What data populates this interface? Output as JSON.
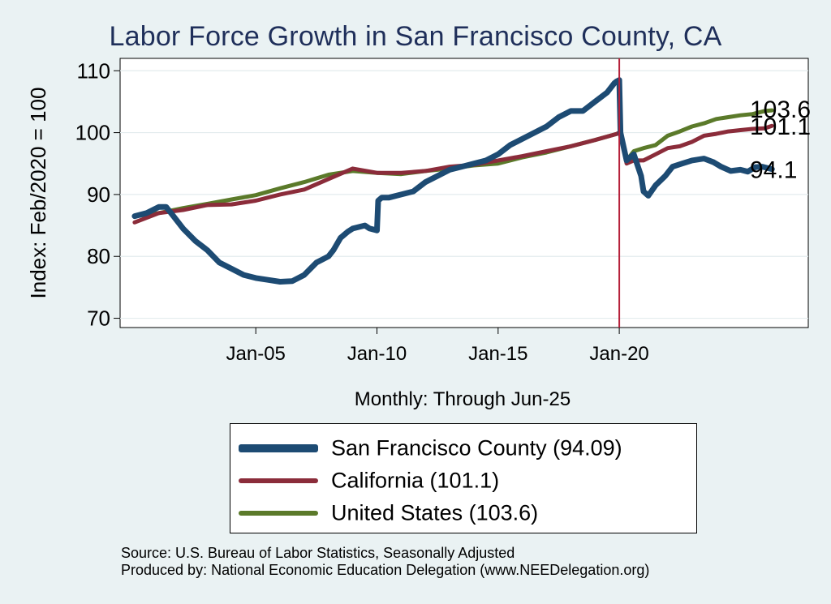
{
  "chart_data": {
    "type": "line",
    "title": "Labor Force Growth in San Francisco  County, CA",
    "xlabel": "Monthly: Through Jun-25",
    "ylabel": "Index: Feb/2020 = 100",
    "ylim": [
      68.5,
      112
    ],
    "xlim": [
      1999.4,
      2027.8
    ],
    "y_ticks": [
      70,
      80,
      90,
      100,
      110
    ],
    "x_ticks": [
      {
        "label": "Jan-05",
        "value": 2005
      },
      {
        "label": "Jan-10",
        "value": 2010
      },
      {
        "label": "Jan-15",
        "value": 2015
      },
      {
        "label": "Jan-20",
        "value": 2020
      }
    ],
    "grid": true,
    "vline": {
      "value": 2020.0,
      "color": "#b5203a"
    },
    "series": [
      {
        "name": "San Francisco  County",
        "legend_label": "San Francisco  County (94.09)",
        "color": "#1d4b73",
        "width": 7,
        "end_label": "94.1",
        "points": [
          [
            2000,
            86.5
          ],
          [
            2000.5,
            87
          ],
          [
            2001,
            88
          ],
          [
            2001.3,
            88
          ],
          [
            2001.6,
            86.5
          ],
          [
            2002,
            84.5
          ],
          [
            2002.5,
            82.5
          ],
          [
            2003,
            81
          ],
          [
            2003.5,
            79
          ],
          [
            2004,
            78
          ],
          [
            2004.5,
            77
          ],
          [
            2005,
            76.5
          ],
          [
            2005.5,
            76.2
          ],
          [
            2006,
            75.9
          ],
          [
            2006.5,
            76
          ],
          [
            2007,
            77
          ],
          [
            2007.5,
            79
          ],
          [
            2008,
            80
          ],
          [
            2008.2,
            81
          ],
          [
            2008.5,
            83
          ],
          [
            2008.8,
            84
          ],
          [
            2009,
            84.5
          ],
          [
            2009.5,
            85
          ],
          [
            2009.7,
            84.5
          ],
          [
            2010,
            84.2
          ],
          [
            2010.05,
            89
          ],
          [
            2010.2,
            89.5
          ],
          [
            2010.5,
            89.5
          ],
          [
            2011,
            90
          ],
          [
            2011.5,
            90.5
          ],
          [
            2012,
            92
          ],
          [
            2012.5,
            93
          ],
          [
            2013,
            94
          ],
          [
            2013.5,
            94.5
          ],
          [
            2014,
            95
          ],
          [
            2014.5,
            95.5
          ],
          [
            2015,
            96.5
          ],
          [
            2015.5,
            98
          ],
          [
            2016,
            99
          ],
          [
            2016.5,
            100
          ],
          [
            2017,
            101
          ],
          [
            2017.5,
            102.5
          ],
          [
            2018,
            103.5
          ],
          [
            2018.5,
            103.5
          ],
          [
            2019,
            105
          ],
          [
            2019.5,
            106.5
          ],
          [
            2019.8,
            108
          ],
          [
            2019.9,
            108.3
          ],
          [
            2020.0,
            108.5
          ],
          [
            2020.05,
            100
          ],
          [
            2020.3,
            95.5
          ],
          [
            2020.6,
            96.5
          ],
          [
            2020.9,
            93
          ],
          [
            2021.0,
            90.5
          ],
          [
            2021.2,
            89.8
          ],
          [
            2021.5,
            91.5
          ],
          [
            2021.9,
            93
          ],
          [
            2022.2,
            94.5
          ],
          [
            2022.6,
            95
          ],
          [
            2023,
            95.5
          ],
          [
            2023.5,
            95.8
          ],
          [
            2023.9,
            95.2
          ],
          [
            2024.2,
            94.5
          ],
          [
            2024.6,
            93.8
          ],
          [
            2025,
            94
          ],
          [
            2025.3,
            93.7
          ],
          [
            2025.6,
            94.4
          ],
          [
            2025.9,
            94.5
          ],
          [
            2026.3,
            94.1
          ]
        ]
      },
      {
        "name": "California",
        "legend_label": "California (101.1)",
        "color": "#8b2c3a",
        "width": 5,
        "end_label": "101.1",
        "points": [
          [
            2000,
            85.5
          ],
          [
            2001,
            87
          ],
          [
            2002,
            87.5
          ],
          [
            2003,
            88.3
          ],
          [
            2004,
            88.4
          ],
          [
            2005,
            89
          ],
          [
            2006,
            90
          ],
          [
            2007,
            90.8
          ],
          [
            2008,
            92.5
          ],
          [
            2009,
            94.2
          ],
          [
            2010,
            93.5
          ],
          [
            2011,
            93.5
          ],
          [
            2012,
            93.8
          ],
          [
            2013,
            94.5
          ],
          [
            2014,
            94.8
          ],
          [
            2015,
            95.5
          ],
          [
            2016,
            96.2
          ],
          [
            2017,
            97
          ],
          [
            2018,
            97.8
          ],
          [
            2019,
            98.8
          ],
          [
            2019.9,
            99.8
          ],
          [
            2020.0,
            100
          ],
          [
            2020.1,
            99
          ],
          [
            2020.3,
            95
          ],
          [
            2020.6,
            95.5
          ],
          [
            2021,
            95.5
          ],
          [
            2021.5,
            96.5
          ],
          [
            2022,
            97.5
          ],
          [
            2022.5,
            97.8
          ],
          [
            2023,
            98.5
          ],
          [
            2023.5,
            99.5
          ],
          [
            2024,
            99.8
          ],
          [
            2024.5,
            100.2
          ],
          [
            2025,
            100.4
          ],
          [
            2025.5,
            100.6
          ],
          [
            2026,
            100.7
          ],
          [
            2026.3,
            101.1
          ]
        ]
      },
      {
        "name": "United States",
        "legend_label": "United States (103.6)",
        "color": "#5b7a2a",
        "width": 5,
        "end_label": "103.6",
        "points": [
          [
            2000,
            86.5
          ],
          [
            2001,
            87
          ],
          [
            2002,
            87.8
          ],
          [
            2003,
            88.5
          ],
          [
            2004,
            89.2
          ],
          [
            2005,
            89.9
          ],
          [
            2006,
            91
          ],
          [
            2007,
            92
          ],
          [
            2008,
            93.2
          ],
          [
            2009,
            93.8
          ],
          [
            2010,
            93.5
          ],
          [
            2011,
            93.3
          ],
          [
            2012,
            93.8
          ],
          [
            2013,
            94.2
          ],
          [
            2014,
            94.7
          ],
          [
            2015,
            95
          ],
          [
            2016,
            96
          ],
          [
            2017,
            96.8
          ],
          [
            2018,
            97.8
          ],
          [
            2019,
            98.8
          ],
          [
            2019.9,
            99.8
          ],
          [
            2020.0,
            100
          ],
          [
            2020.1,
            99.5
          ],
          [
            2020.3,
            95.5
          ],
          [
            2020.6,
            97
          ],
          [
            2021,
            97.5
          ],
          [
            2021.5,
            98
          ],
          [
            2022,
            99.5
          ],
          [
            2022.5,
            100.2
          ],
          [
            2023,
            101
          ],
          [
            2023.5,
            101.5
          ],
          [
            2024,
            102.2
          ],
          [
            2024.5,
            102.5
          ],
          [
            2025,
            102.8
          ],
          [
            2025.5,
            103
          ],
          [
            2026,
            103.5
          ],
          [
            2026.3,
            103.6
          ]
        ]
      }
    ]
  },
  "source_line_1": "Source: U.S. Bureau of Labor Statistics, Seasonally Adjusted",
  "source_line_2": "Produced by: National Economic Education Delegation (www.NEEDelegation.org)"
}
